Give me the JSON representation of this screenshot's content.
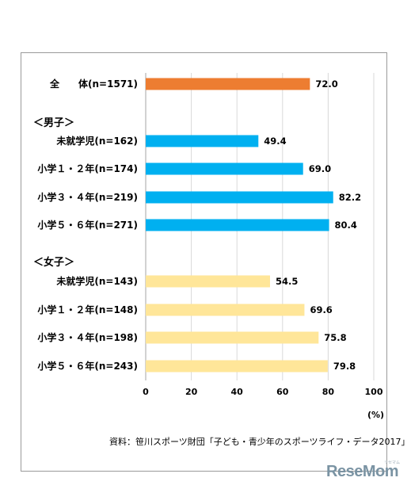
{
  "chart_data": {
    "type": "bar",
    "orientation": "horizontal",
    "xlim": [
      0,
      100
    ],
    "x_ticks": [
      "0",
      "20",
      "40",
      "60",
      "80",
      "100"
    ],
    "unit": "(%)",
    "groups": [
      "＜男子＞",
      "＜女子＞"
    ],
    "rows": [
      {
        "label": "全　　体(n=1571)",
        "value": 72.0,
        "value_label": "72.0",
        "color": "#ed7d31",
        "group": null
      },
      {
        "label": "未就学児(n=162)",
        "value": 49.4,
        "value_label": "49.4",
        "color": "#00b0f0",
        "group": "＜男子＞"
      },
      {
        "label": "小学１・２年(n=174)",
        "value": 69.0,
        "value_label": "69.0",
        "color": "#00b0f0",
        "group": "＜男子＞"
      },
      {
        "label": "小学３・４年(n=219)",
        "value": 82.2,
        "value_label": "82.2",
        "color": "#00b0f0",
        "group": "＜男子＞"
      },
      {
        "label": "小学５・６年(n=271)",
        "value": 80.4,
        "value_label": "80.4",
        "color": "#00b0f0",
        "group": "＜男子＞"
      },
      {
        "label": "未就学児(n=143)",
        "value": 54.5,
        "value_label": "54.5",
        "color": "#ffe699",
        "group": "＜女子＞"
      },
      {
        "label": "小学１・２年(n=148)",
        "value": 69.6,
        "value_label": "69.6",
        "color": "#ffe699",
        "group": "＜女子＞"
      },
      {
        "label": "小学３・４年(n=198)",
        "value": 75.8,
        "value_label": "75.8",
        "color": "#ffe699",
        "group": "＜女子＞"
      },
      {
        "label": "小学５・６年(n=243)",
        "value": 79.8,
        "value_label": "79.8",
        "color": "#ffe699",
        "group": "＜女子＞"
      }
    ],
    "grid": true,
    "legend": "none"
  },
  "source": "資料：笹川スポーツ財団「子ども・青少年のスポーツライフ・データ2017」",
  "brand": {
    "logo_text": "ReseMom",
    "kana": "リセマム"
  }
}
